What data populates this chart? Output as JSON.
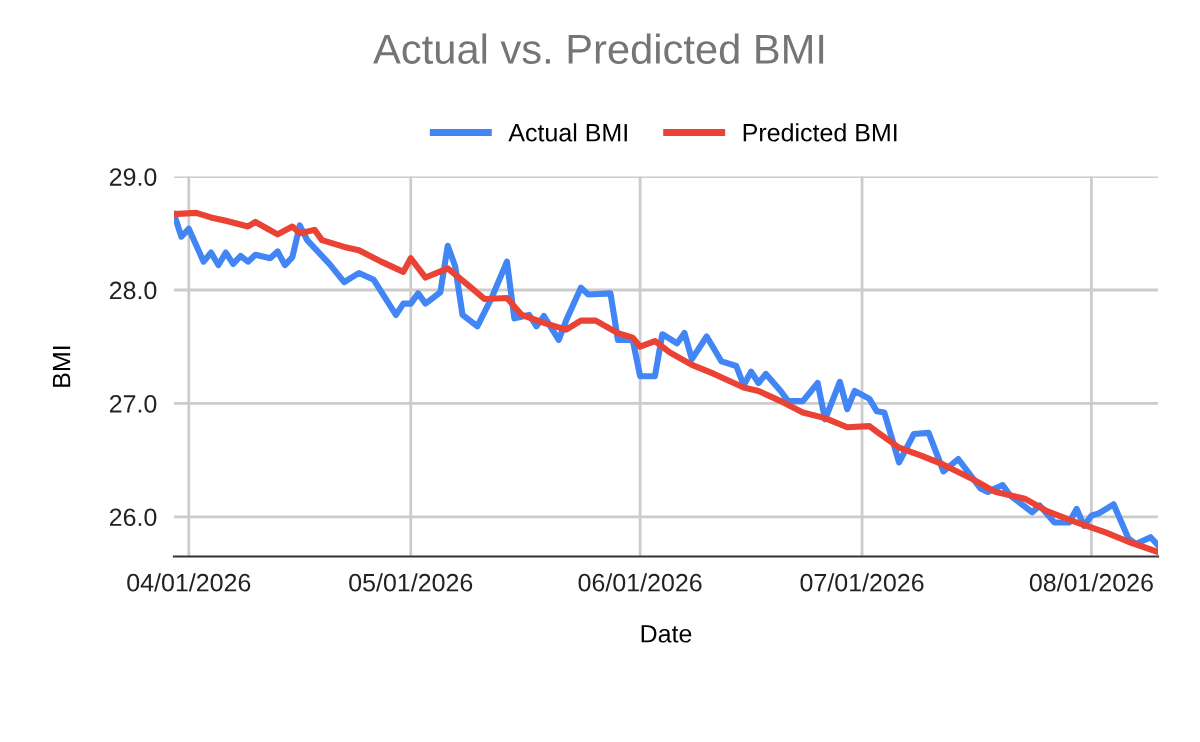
{
  "chart_data": {
    "type": "line",
    "title": "Actual vs. Predicted BMI",
    "xlabel": "Date",
    "ylabel": "BMI",
    "xlim": [
      "2026-03-30",
      "2026-08-10"
    ],
    "xticks": [
      {
        "value": "2026-04-01",
        "label": "04/01/2026"
      },
      {
        "value": "2026-05-01",
        "label": "05/01/2026"
      },
      {
        "value": "2026-06-01",
        "label": "06/01/2026"
      },
      {
        "value": "2026-07-01",
        "label": "07/01/2026"
      },
      {
        "value": "2026-08-01",
        "label": "08/01/2026"
      }
    ],
    "ylim": [
      25.65,
      29
    ],
    "yticks": [
      {
        "value": 26,
        "label": "26.0"
      },
      {
        "value": 27,
        "label": "27.0"
      },
      {
        "value": 28,
        "label": "28.0"
      },
      {
        "value": 29,
        "label": "29.0"
      }
    ],
    "grid": true,
    "legend": "top",
    "marker": "none",
    "line_style": "solid",
    "series": [
      {
        "name": "Actual BMI",
        "color": "#4285f4",
        "x": [
          "2026-03-30",
          "2026-03-31",
          "2026-04-01",
          "2026-04-03",
          "2026-04-04",
          "2026-04-05",
          "2026-04-06",
          "2026-04-07",
          "2026-04-08",
          "2026-04-09",
          "2026-04-10",
          "2026-04-12",
          "2026-04-13",
          "2026-04-14",
          "2026-04-15",
          "2026-04-16",
          "2026-04-17",
          "2026-04-20",
          "2026-04-22",
          "2026-04-24",
          "2026-04-26",
          "2026-04-29",
          "2026-04-30",
          "2026-05-01",
          "2026-05-02",
          "2026-05-03",
          "2026-05-05",
          "2026-05-06",
          "2026-05-07",
          "2026-05-08",
          "2026-05-10",
          "2026-05-12",
          "2026-05-14",
          "2026-05-15",
          "2026-05-17",
          "2026-05-18",
          "2026-05-19",
          "2026-05-21",
          "2026-05-22",
          "2026-05-24",
          "2026-05-25",
          "2026-05-28",
          "2026-05-29",
          "2026-05-31",
          "2026-06-01",
          "2026-06-03",
          "2026-06-04",
          "2026-06-06",
          "2026-06-07",
          "2026-06-08",
          "2026-06-10",
          "2026-06-12",
          "2026-06-14",
          "2026-06-15",
          "2026-06-16",
          "2026-06-17",
          "2026-06-18",
          "2026-06-20",
          "2026-06-21",
          "2026-06-23",
          "2026-06-25",
          "2026-06-26",
          "2026-06-28",
          "2026-06-29",
          "2026-06-30",
          "2026-07-02",
          "2026-07-03",
          "2026-07-04",
          "2026-07-06",
          "2026-07-08",
          "2026-07-10",
          "2026-07-11",
          "2026-07-12",
          "2026-07-14",
          "2026-07-17",
          "2026-07-18",
          "2026-07-20",
          "2026-07-21",
          "2026-07-24",
          "2026-07-25",
          "2026-07-27",
          "2026-07-29",
          "2026-07-30",
          "2026-07-31",
          "2026-08-01",
          "2026-08-02",
          "2026-08-04",
          "2026-08-06",
          "2026-08-07",
          "2026-08-09",
          "2026-08-10"
        ],
        "values": [
          28.67,
          28.47,
          28.54,
          28.25,
          28.33,
          28.22,
          28.33,
          28.23,
          28.3,
          28.25,
          28.31,
          28.28,
          28.34,
          28.22,
          28.29,
          28.57,
          28.44,
          28.23,
          28.07,
          28.15,
          28.09,
          27.78,
          27.88,
          27.88,
          27.97,
          27.88,
          27.98,
          28.39,
          28.21,
          27.78,
          27.68,
          27.94,
          28.25,
          27.75,
          27.78,
          27.68,
          27.77,
          27.56,
          27.73,
          28.02,
          27.96,
          27.97,
          27.56,
          27.56,
          27.24,
          27.24,
          27.61,
          27.53,
          27.62,
          27.39,
          27.59,
          27.37,
          27.33,
          27.16,
          27.28,
          27.18,
          27.26,
          27.11,
          27.02,
          27.02,
          27.18,
          26.86,
          27.19,
          26.95,
          27.11,
          27.04,
          26.93,
          26.92,
          26.48,
          26.73,
          26.74,
          26.57,
          26.4,
          26.51,
          26.25,
          26.22,
          26.28,
          26.19,
          26.04,
          26.1,
          25.95,
          25.95,
          26.07,
          25.92,
          26.01,
          26.03,
          26.11,
          25.81,
          25.76,
          25.82,
          25.75
        ]
      },
      {
        "name": "Predicted BMI",
        "color": "#ea4335",
        "x": [
          "2026-03-30",
          "2026-04-02",
          "2026-04-04",
          "2026-04-06",
          "2026-04-09",
          "2026-04-10",
          "2026-04-13",
          "2026-04-15",
          "2026-04-16",
          "2026-04-18",
          "2026-04-19",
          "2026-04-22",
          "2026-04-24",
          "2026-04-27",
          "2026-04-30",
          "2026-05-01",
          "2026-05-03",
          "2026-05-06",
          "2026-05-09",
          "2026-05-11",
          "2026-05-14",
          "2026-05-16",
          "2026-05-19",
          "2026-05-22",
          "2026-05-24",
          "2026-05-26",
          "2026-05-29",
          "2026-05-31",
          "2026-06-01",
          "2026-06-03",
          "2026-06-05",
          "2026-06-08",
          "2026-06-11",
          "2026-06-15",
          "2026-06-17",
          "2026-06-20",
          "2026-06-23",
          "2026-06-26",
          "2026-06-29",
          "2026-07-02",
          "2026-07-03",
          "2026-07-06",
          "2026-07-09",
          "2026-07-12",
          "2026-07-16",
          "2026-07-19",
          "2026-07-23",
          "2026-07-26",
          "2026-07-30",
          "2026-08-03",
          "2026-08-06",
          "2026-08-10"
        ],
        "values": [
          28.67,
          28.68,
          28.64,
          28.61,
          28.56,
          28.6,
          28.49,
          28.56,
          28.5,
          28.53,
          28.44,
          28.38,
          28.35,
          28.25,
          28.16,
          28.28,
          28.11,
          28.19,
          28.03,
          27.92,
          27.93,
          27.78,
          27.71,
          27.65,
          27.73,
          27.73,
          27.62,
          27.58,
          27.5,
          27.55,
          27.45,
          27.34,
          27.26,
          27.14,
          27.11,
          27.02,
          26.92,
          26.87,
          26.79,
          26.8,
          26.75,
          26.61,
          26.54,
          26.46,
          26.33,
          26.22,
          26.16,
          26.05,
          25.95,
          25.86,
          25.78,
          25.69
        ]
      }
    ]
  }
}
